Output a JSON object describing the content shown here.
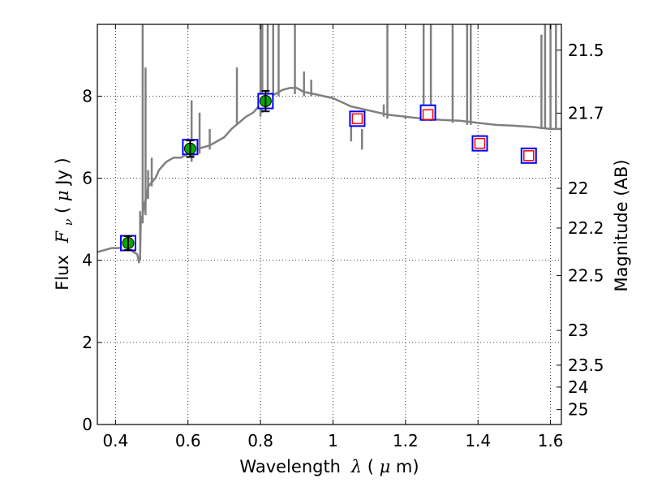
{
  "chart_data": {
    "type": "scatter",
    "title": "",
    "xlabel": {
      "prefix": "Wavelength",
      "symbol": "λ",
      "unit_open": " (",
      "unit_mu": "μ",
      "unit_rest": "m)"
    },
    "ylabel": {
      "prefix": "Flux",
      "symbol": "F",
      "subscript": "ν",
      "unit_open": " ( ",
      "unit_mu": "μ",
      "unit_rest": "Jy )"
    },
    "y2label": "Magnitude (AB)",
    "xlim": [
      0.35,
      1.63
    ],
    "ylim": [
      0,
      9.75
    ],
    "grid": true,
    "x_ticks": [
      0.4,
      0.6,
      0.8,
      1.0,
      1.2,
      1.4,
      1.6
    ],
    "x_tick_labels": [
      "0.4",
      "0.6",
      "0.8",
      "1",
      "1.2",
      "1.4",
      "1.6"
    ],
    "y_ticks": [
      0,
      2,
      4,
      6,
      8
    ],
    "y_tick_labels": [
      "0",
      "2",
      "4",
      "6",
      "8"
    ],
    "y2_ticks": [
      21.5,
      21.7,
      22,
      22.2,
      22.5,
      23,
      23.5,
      24,
      25
    ],
    "y2_tick_labels": [
      "21.5",
      "21.7",
      "22",
      "22.2",
      "22.5",
      "23",
      "23.5",
      "24",
      "25"
    ],
    "colors": {
      "template": "#808080",
      "observed": "#00aa00",
      "model_box": "#0000ff",
      "upper": "#ff0000",
      "errorbar": "#000000"
    },
    "observed": {
      "name": "",
      "x": [
        0.435,
        0.606,
        0.814
      ],
      "y": [
        4.42,
        6.72,
        7.88
      ],
      "yerr": [
        0.17,
        0.2,
        0.25
      ]
    },
    "model_points": {
      "x": [
        0.435,
        0.606,
        0.814,
        1.067,
        1.262,
        1.405,
        1.54
      ],
      "y": [
        4.42,
        6.76,
        7.88,
        7.45,
        7.6,
        6.85,
        6.55
      ]
    },
    "nir_points": {
      "x": [
        1.067,
        1.262,
        1.405,
        1.54
      ],
      "y": [
        7.45,
        7.55,
        6.85,
        6.55
      ]
    },
    "template_spectrum": {
      "x": [
        0.35,
        0.37,
        0.39,
        0.41,
        0.43,
        0.45,
        0.46,
        0.465,
        0.468,
        0.47,
        0.475,
        0.48,
        0.485,
        0.49,
        0.5,
        0.51,
        0.52,
        0.54,
        0.56,
        0.58,
        0.6,
        0.62,
        0.64,
        0.66,
        0.68,
        0.7,
        0.72,
        0.74,
        0.76,
        0.78,
        0.8,
        0.82,
        0.84,
        0.86,
        0.88,
        0.9,
        0.92,
        0.95,
        1.0,
        1.05,
        1.1,
        1.15,
        1.2,
        1.25,
        1.3,
        1.35,
        1.4,
        1.45,
        1.5,
        1.55,
        1.6,
        1.63
      ],
      "y": [
        4.2,
        4.25,
        4.3,
        4.3,
        4.35,
        4.2,
        4.15,
        3.95,
        4.1,
        5.0,
        5.1,
        5.4,
        5.5,
        5.8,
        5.9,
        6.0,
        6.2,
        6.4,
        6.5,
        6.5,
        6.6,
        6.7,
        6.75,
        6.8,
        6.9,
        7.0,
        7.2,
        7.35,
        7.5,
        7.6,
        7.8,
        8.0,
        8.05,
        8.15,
        8.2,
        8.2,
        8.1,
        8.05,
        7.95,
        7.75,
        7.65,
        7.55,
        7.5,
        7.45,
        7.42,
        7.4,
        7.35,
        7.3,
        7.28,
        7.25,
        7.2,
        7.2
      ]
    },
    "template_features": {
      "x": [
        0.468,
        0.475,
        0.483,
        0.49,
        0.5,
        0.61,
        0.615,
        0.632,
        0.66,
        0.735,
        0.8,
        0.805,
        0.82,
        0.835,
        0.85,
        0.895,
        0.92,
        0.94,
        1.05,
        1.08,
        1.1,
        1.14,
        1.15,
        1.2,
        1.25,
        1.27,
        1.33,
        1.37,
        1.38,
        1.575,
        1.585,
        1.6,
        1.615
      ],
      "top": [
        5.2,
        9.75,
        8.7,
        6.2,
        6.5,
        7.9,
        6.8,
        7.6,
        7.2,
        8.7,
        9.75,
        9.75,
        9.75,
        9.75,
        9.75,
        9.75,
        8.6,
        8.4,
        7.3,
        7.2,
        7.4,
        7.8,
        9.75,
        7.5,
        9.75,
        9.75,
        9.75,
        9.75,
        9.75,
        9.5,
        9.75,
        9.75,
        9.75
      ],
      "bottom": [
        4.0,
        4.9,
        5.1,
        5.5,
        5.8,
        6.4,
        6.5,
        6.6,
        6.7,
        7.3,
        7.5,
        7.6,
        7.9,
        8.0,
        8.0,
        8.05,
        8.0,
        8.0,
        6.9,
        6.7,
        7.4,
        7.5,
        7.45,
        7.45,
        7.4,
        7.4,
        7.35,
        7.3,
        7.3,
        7.2,
        7.2,
        7.2,
        7.2
      ]
    }
  }
}
